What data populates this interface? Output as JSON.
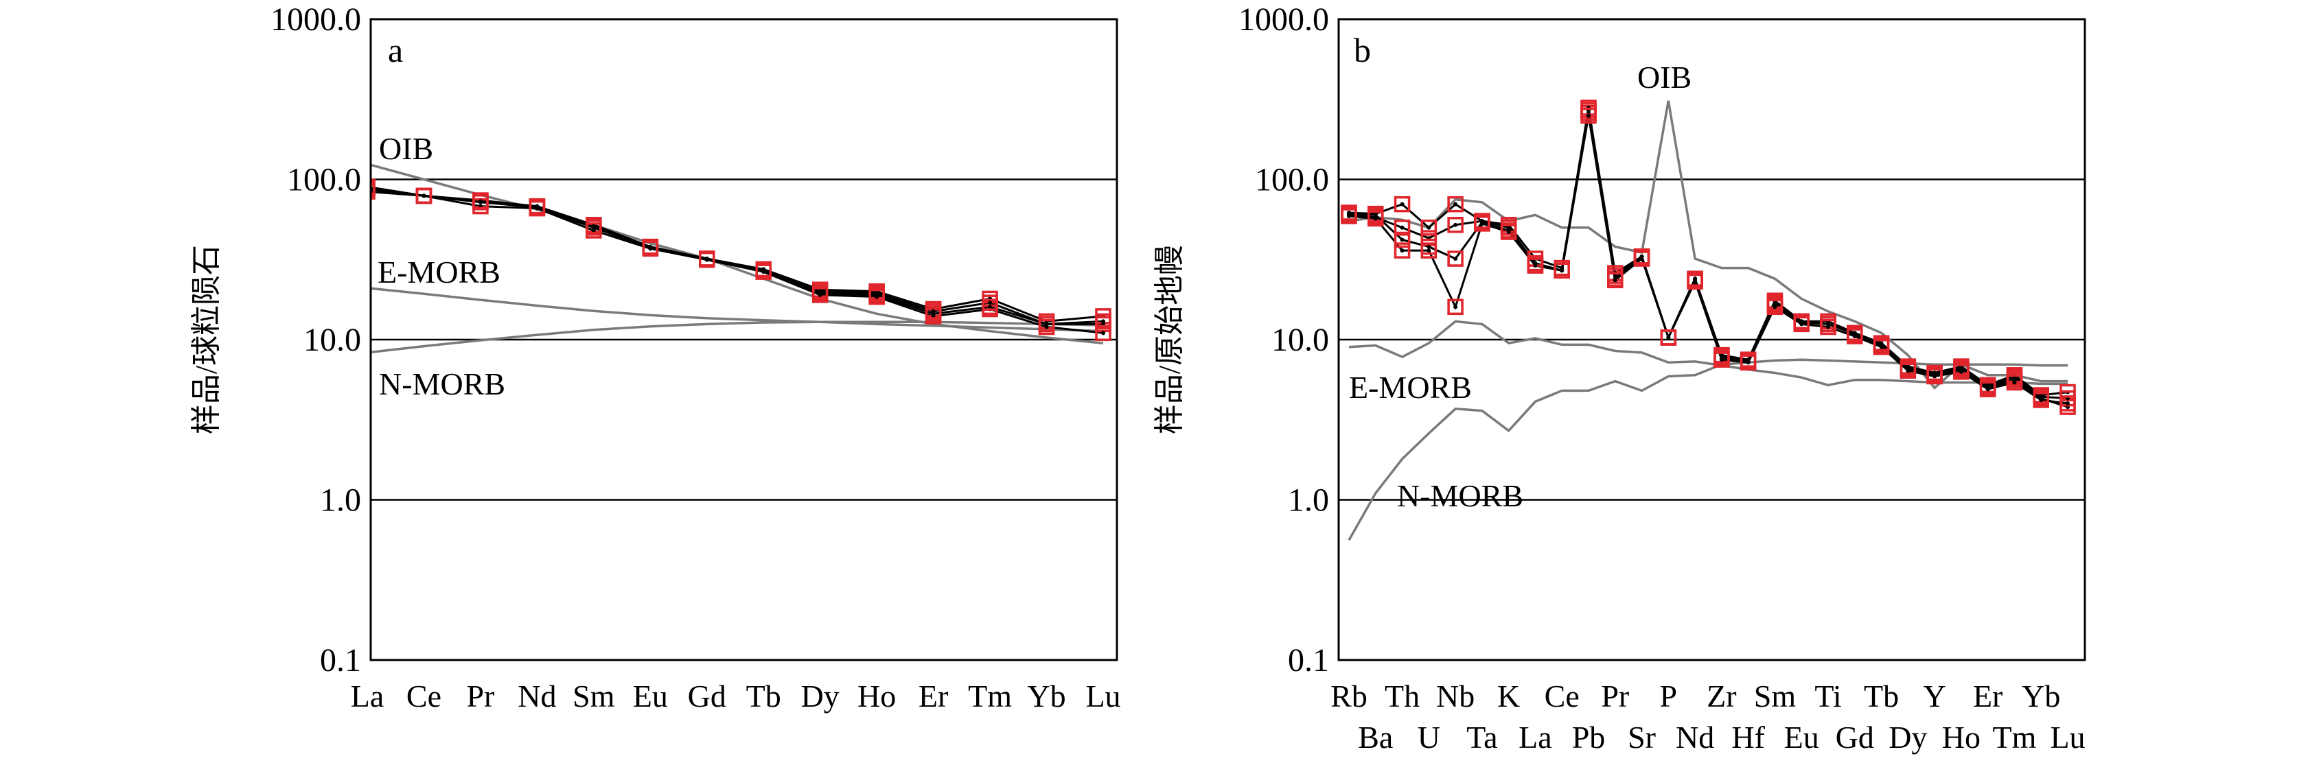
{
  "chart_data": [
    {
      "type": "line",
      "panel_label": "a",
      "ylabel": "样品/球粒陨石",
      "yscale": "log",
      "ylim": [
        0.1,
        1000
      ],
      "yticks": [
        "1000.0",
        "100.0",
        "10.0",
        "1.0",
        "0.1"
      ],
      "gridlines_at": [
        100,
        10,
        1
      ],
      "categories": [
        "La",
        "Ce",
        "Pr",
        "Nd",
        "Sm",
        "Eu",
        "Gd",
        "Tb",
        "Dy",
        "Ho",
        "Er",
        "Tm",
        "Yb",
        "Lu"
      ],
      "reference_lines": [
        {
          "name": "OIB",
          "values": [
            125,
            100,
            80,
            65,
            52,
            40,
            32,
            24,
            18,
            14.5,
            12.5,
            11.3,
            10.3,
            9.5
          ]
        },
        {
          "name": "E-MORB",
          "values": [
            21,
            19.3,
            17.7,
            16.3,
            15.1,
            14.2,
            13.6,
            13.2,
            12.9,
            12.5,
            12.2,
            11.9,
            11.6,
            11.3
          ]
        },
        {
          "name": "N-MORB",
          "values": [
            8.3,
            9.1,
            9.9,
            10.7,
            11.5,
            12.1,
            12.5,
            12.8,
            12.9,
            12.9,
            12.9,
            12.7,
            12.5,
            12.3
          ]
        }
      ],
      "samples": [
        {
          "values": [
            90,
            79,
            74,
            68,
            52,
            38,
            32,
            27.5,
            20.5,
            20,
            15.5,
            18,
            13,
            14
          ]
        },
        {
          "values": [
            87,
            79,
            72,
            67,
            50,
            37.5,
            32,
            27,
            19.5,
            19,
            14.5,
            16,
            12.5,
            12.5
          ]
        },
        {
          "values": [
            84,
            79,
            68,
            66,
            48,
            37,
            31.5,
            26.5,
            19,
            18.5,
            14,
            15.5,
            12,
            11
          ]
        },
        {
          "values": [
            88,
            79,
            73,
            67,
            51,
            37.5,
            32,
            27,
            20,
            19.5,
            15,
            17,
            12.5,
            13
          ]
        }
      ],
      "marker_color": "#e0252c",
      "line_color": "#000000",
      "reference_color": "#7a7a7a"
    },
    {
      "type": "line",
      "panel_label": "b",
      "ylabel": "样品/原始地幔",
      "yscale": "log",
      "ylim": [
        0.1,
        1000
      ],
      "yticks": [
        "1000.0",
        "100.0",
        "10.0",
        "1.0",
        "0.1"
      ],
      "gridlines_at": [
        100,
        10,
        1
      ],
      "categories": [
        "Rb",
        "Ba",
        "Th",
        "U",
        "Nb",
        "Ta",
        "K",
        "La",
        "Ce",
        "Pb",
        "Pr",
        "Sr",
        "P",
        "Nd",
        "Zr",
        "Hf",
        "Sm",
        "Eu",
        "Ti",
        "Gd",
        "Tb",
        "Dy",
        "Y",
        "Ho",
        "Er",
        "Tm",
        "Yb",
        "Lu"
      ],
      "category_rows": {
        "top": [
          "Rb",
          "Th",
          "Nb",
          "K",
          "Ce",
          "Pr",
          "P",
          "Zr",
          "Sm",
          "Ti",
          "Tb",
          "Y",
          "Er",
          "Yb"
        ],
        "bottom": [
          "Ba",
          "U",
          "Ta",
          "La",
          "Pb",
          "Sr",
          "Nd",
          "Hf",
          "Eu",
          "Gd",
          "Dy",
          "Ho",
          "Tm",
          "Lu"
        ]
      },
      "reference_lines": [
        {
          "name": "OIB",
          "values": [
            55,
            58,
            56,
            50,
            75,
            72,
            55,
            60,
            50,
            50,
            38,
            35,
            310,
            32,
            28,
            28,
            24,
            18,
            15,
            13,
            11,
            8,
            5,
            7,
            6,
            6,
            5.5,
            5.5
          ]
        },
        {
          "name": "E-MORB",
          "values": [
            9,
            9.2,
            7.8,
            9.5,
            13,
            12.5,
            9.5,
            10.2,
            9.3,
            9.3,
            8.5,
            8.3,
            7.2,
            7.3,
            6.9,
            6.5,
            6.2,
            5.8,
            5.2,
            5.6,
            5.6,
            5.5,
            5.4,
            5.4,
            5.4,
            5.4,
            5.3,
            5.3
          ]
        },
        {
          "name": "N-MORB",
          "values": [
            0.56,
            1.1,
            1.8,
            2.6,
            3.7,
            3.6,
            2.7,
            4.1,
            4.8,
            4.8,
            5.5,
            4.8,
            5.9,
            6.0,
            7.0,
            7.2,
            7.4,
            7.5,
            7.4,
            7.3,
            7.2,
            7.1,
            7.0,
            7.0,
            7.0,
            7.0,
            6.9,
            6.9
          ]
        }
      ],
      "samples": [
        {
          "values": [
            62,
            61,
            70,
            50,
            70,
            55,
            52,
            32,
            28,
            270,
            25,
            33,
            10.3,
            24,
            8,
            7.5,
            17.5,
            13,
            13,
            11,
            9.5,
            6.8,
            6.2,
            6.8,
            5.2,
            6,
            4.5,
            4.7
          ]
        },
        {
          "values": [
            60,
            58,
            50,
            43,
            52,
            55,
            50,
            30,
            27,
            260,
            24,
            33,
            10.3,
            23.5,
            7.8,
            7.3,
            17,
            13,
            12.5,
            11,
            9.3,
            6.5,
            6,
            6.5,
            5,
            5.6,
            4.3,
            3.8
          ]
        },
        {
          "values": [
            61,
            60,
            42,
            38,
            32,
            54,
            48,
            29,
            27,
            280,
            26,
            33,
            10.3,
            24,
            7.6,
            7.3,
            16.5,
            12.8,
            12.5,
            10.8,
            9.2,
            6.6,
            6.1,
            6.6,
            5.1,
            5.8,
            4.4,
            4.3
          ]
        },
        {
          "values": [
            59,
            57,
            36,
            36,
            16,
            53,
            47,
            29,
            27,
            250,
            23.5,
            32,
            10.3,
            23,
            7.5,
            7.2,
            16,
            12.5,
            12,
            10.5,
            9,
            6.4,
            5.9,
            6.3,
            4.9,
            5.4,
            4.2,
            4
          ]
        }
      ],
      "marker_color": "#e0252c",
      "line_color": "#000000",
      "reference_color": "#7a7a7a"
    }
  ]
}
